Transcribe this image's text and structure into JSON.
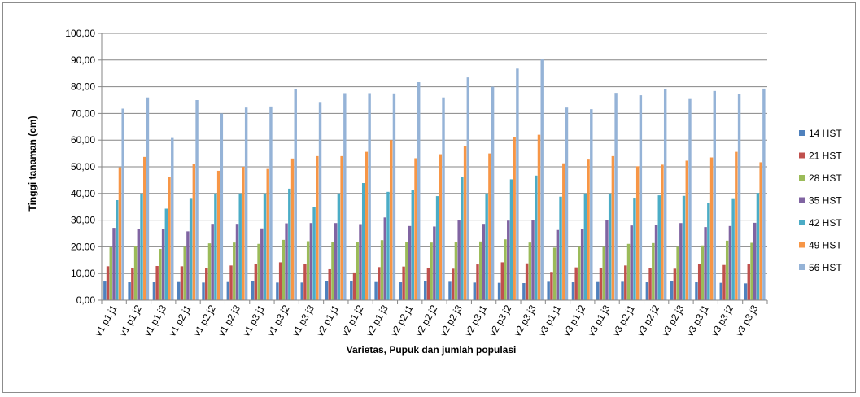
{
  "chart_data": {
    "type": "bar",
    "xlabel": "Varietas, Pupuk dan jumlah populasi",
    "ylabel": "Tinggi tanaman (cm)",
    "ylim": [
      0,
      100
    ],
    "yticks": [
      "0,00",
      "10,00",
      "20,00",
      "30,00",
      "40,00",
      "50,00",
      "60,00",
      "70,00",
      "80,00",
      "90,00",
      "100,00"
    ],
    "grid": true,
    "legend_position": "right",
    "categories": [
      "v1 p1 j1",
      "v1 p1 j2",
      "v1 p1 j3",
      "v1 p2 j1",
      "v1 p2 j2",
      "v1 p2 j3",
      "v1 p3 j1",
      "v1 p3 j2",
      "v1 p3 j3",
      "v2 p1 j1",
      "v2 p1 j2",
      "v2 p1 j3",
      "v2 p2 j1",
      "v2 p2 j2",
      "v2 p2 j3",
      "v2 p3 j1",
      "v2 p3 j2",
      "v2 p3 j3",
      "v3 p1 j1",
      "v3 p1 j2",
      "v3 p1 j3",
      "v3 p2 j1",
      "v3 p2 j2",
      "v3 p2 j3",
      "v3 p3 j1",
      "v3 p3 j2",
      "v3 p3 j3"
    ],
    "series": [
      {
        "name": "14 HST",
        "color": "#4f81bd",
        "values": [
          7.0,
          6.7,
          6.7,
          6.8,
          6.6,
          6.8,
          7.1,
          6.6,
          6.6,
          7.1,
          7.2,
          6.8,
          6.7,
          7.2,
          6.9,
          6.6,
          6.5,
          6.4,
          6.9,
          6.7,
          6.8,
          6.9,
          6.7,
          7.1,
          6.7,
          6.5,
          6.3
        ]
      },
      {
        "name": "21 HST",
        "color": "#c0504d",
        "values": [
          12.7,
          12.2,
          12.8,
          12.7,
          12.0,
          13.0,
          13.6,
          14.2,
          13.7,
          11.6,
          10.4,
          12.4,
          12.6,
          12.2,
          11.8,
          13.4,
          14.2,
          13.8,
          10.6,
          12.3,
          12.2,
          13.0,
          12.0,
          11.8,
          13.5,
          13.2,
          13.6
        ]
      },
      {
        "name": "28 HST",
        "color": "#9bbb59",
        "values": [
          19.8,
          20.3,
          19.2,
          20.0,
          21.3,
          21.6,
          21.1,
          22.6,
          22.1,
          21.8,
          21.9,
          22.5,
          21.7,
          21.6,
          21.8,
          22.0,
          22.8,
          21.6,
          19.7,
          20.0,
          20.0,
          21.1,
          21.4,
          20.0,
          20.5,
          22.3,
          21.5
        ]
      },
      {
        "name": "35 HST",
        "color": "#8064a2",
        "values": [
          27.1,
          26.7,
          26.6,
          25.8,
          28.6,
          28.6,
          26.9,
          28.8,
          28.9,
          28.9,
          28.5,
          31.0,
          27.8,
          27.6,
          29.9,
          28.6,
          29.8,
          30.0,
          26.3,
          26.6,
          30.0,
          28.0,
          28.3,
          28.9,
          27.4,
          27.8,
          29.0
        ]
      },
      {
        "name": "42 HST",
        "color": "#4bacc6",
        "values": [
          37.5,
          39.8,
          34.3,
          38.3,
          40.0,
          40.0,
          40.0,
          41.8,
          34.8,
          40.0,
          43.9,
          40.6,
          41.3,
          39.0,
          46.1,
          40.0,
          45.3,
          46.7,
          38.8,
          40.0,
          40.0,
          38.4,
          39.3,
          39.1,
          36.5,
          38.2,
          40.2
        ]
      },
      {
        "name": "49 HST",
        "color": "#f79646",
        "values": [
          49.8,
          53.7,
          46.1,
          51.2,
          48.5,
          50.0,
          49.2,
          53.1,
          54.0,
          54.0,
          55.6,
          60.0,
          53.2,
          54.7,
          57.9,
          55.0,
          61.0,
          62.0,
          51.3,
          52.7,
          54.0,
          50.2,
          50.8,
          52.3,
          53.5,
          55.6,
          51.7
        ]
      },
      {
        "name": "56 HST",
        "color": "#95b3d7",
        "values": [
          71.8,
          76.0,
          60.8,
          75.0,
          70.0,
          72.2,
          72.6,
          79.2,
          74.3,
          77.6,
          77.6,
          77.5,
          81.7,
          76.0,
          83.5,
          80.0,
          86.8,
          90.2,
          72.2,
          71.6,
          77.7,
          76.8,
          79.2,
          75.4,
          78.4,
          77.2,
          79.3
        ]
      }
    ]
  }
}
